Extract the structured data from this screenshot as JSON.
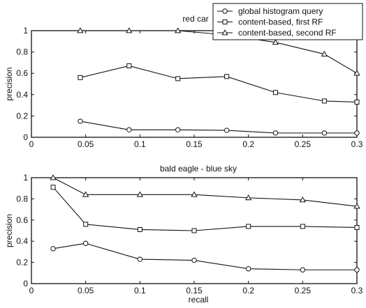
{
  "chart_data": [
    {
      "type": "line",
      "title": "red car",
      "xlabel": "",
      "ylabel": "precision",
      "xlim": [
        0,
        0.3
      ],
      "ylim": [
        0,
        1
      ],
      "xticks": [
        "0",
        "0.05",
        "0.1",
        "0.15",
        "0.2",
        "0.25",
        "0.3"
      ],
      "yticks": [
        "0",
        "0.2",
        "0.4",
        "0.6",
        "0.8",
        "1"
      ],
      "grid": false,
      "legend": "top-right",
      "series": [
        {
          "name": "global histogram query",
          "marker": "circle",
          "x": [
            0.045,
            0.09,
            0.135,
            0.18,
            0.225,
            0.27,
            0.3
          ],
          "y": [
            0.15,
            0.07,
            0.07,
            0.065,
            0.04,
            0.04,
            0.04
          ]
        },
        {
          "name": "content-based, first RF",
          "marker": "square",
          "x": [
            0.045,
            0.09,
            0.135,
            0.18,
            0.225,
            0.27,
            0.3
          ],
          "y": [
            0.56,
            0.67,
            0.55,
            0.57,
            0.42,
            0.34,
            0.33
          ]
        },
        {
          "name": "content-based, second RF",
          "marker": "triangle",
          "x": [
            0.045,
            0.09,
            0.135,
            0.18,
            0.225,
            0.27,
            0.3
          ],
          "y": [
            1.0,
            1.0,
            1.0,
            0.96,
            0.89,
            0.78,
            0.6
          ]
        }
      ]
    },
    {
      "type": "line",
      "title": "bald eagle - blue sky",
      "xlabel": "recall",
      "ylabel": "precision",
      "xlim": [
        0,
        0.3
      ],
      "ylim": [
        0,
        1
      ],
      "xticks": [
        "0",
        "0.05",
        "0.1",
        "0.15",
        "0.2",
        "0.25",
        "0.3"
      ],
      "yticks": [
        "0",
        "0.2",
        "0.4",
        "0.6",
        "0.8",
        "1"
      ],
      "grid": false,
      "series": [
        {
          "name": "global histogram query",
          "marker": "circle",
          "x": [
            0.02,
            0.05,
            0.1,
            0.15,
            0.2,
            0.25,
            0.3
          ],
          "y": [
            0.33,
            0.38,
            0.23,
            0.22,
            0.14,
            0.13,
            0.13
          ]
        },
        {
          "name": "content-based, first RF",
          "marker": "square",
          "x": [
            0.02,
            0.05,
            0.1,
            0.15,
            0.2,
            0.25,
            0.3
          ],
          "y": [
            0.91,
            0.56,
            0.51,
            0.5,
            0.54,
            0.54,
            0.53
          ]
        },
        {
          "name": "content-based, second RF",
          "marker": "triangle",
          "x": [
            0.02,
            0.05,
            0.1,
            0.15,
            0.2,
            0.25,
            0.3
          ],
          "y": [
            1.0,
            0.84,
            0.84,
            0.84,
            0.81,
            0.79,
            0.73
          ]
        }
      ]
    }
  ]
}
